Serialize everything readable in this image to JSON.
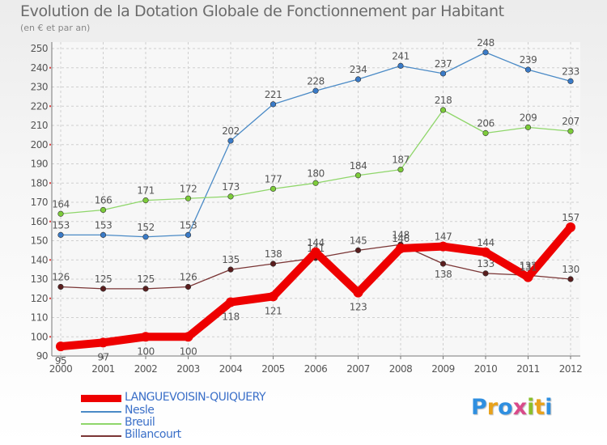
{
  "title": "Evolution de la Dotation Globale de Fonctionnement par Habitant",
  "subtitle": "(en € et par an)",
  "logo": {
    "text": "Proxiti",
    "colors": [
      "#2f8fe0",
      "#e8a21c",
      "#2f8fe0",
      "#d94a8a",
      "#8bbf2c",
      "#e8a21c",
      "#2f8fe0"
    ]
  },
  "chart_data": {
    "type": "line",
    "title": "Evolution de la Dotation Globale de Fonctionnement par Habitant",
    "subtitle": "(en € et par an)",
    "xlabel": "",
    "ylabel": "",
    "categories": [
      "2000",
      "2001",
      "2002",
      "2003",
      "2004",
      "2005",
      "2006",
      "2007",
      "2008",
      "2009",
      "2010",
      "2011",
      "2012"
    ],
    "y_ticks": [
      90,
      100,
      110,
      120,
      130,
      140,
      150,
      160,
      170,
      180,
      190,
      200,
      210,
      220,
      230,
      240,
      250
    ],
    "ylim": [
      90,
      250
    ],
    "grid": true,
    "legend_position": "bottom-left",
    "series": [
      {
        "name": "Nesle",
        "color": "#4a8ac6",
        "point_color": "#3a7bc8",
        "values": [
          153,
          153,
          152,
          153,
          202,
          221,
          228,
          234,
          241,
          237,
          248,
          239,
          233
        ]
      },
      {
        "name": "Breuil",
        "color": "#8fd66a",
        "point_color": "#7dcc3a",
        "values": [
          164,
          166,
          171,
          172,
          173,
          177,
          180,
          184,
          187,
          218,
          206,
          209,
          207
        ]
      },
      {
        "name": "Billancourt",
        "color": "#7a3535",
        "point_color": "#5a1e1e",
        "values": [
          126,
          125,
          125,
          126,
          135,
          138,
          141,
          145,
          148,
          138,
          133,
          132,
          130
        ]
      },
      {
        "name": "LANGUEVOISIN-QUIQUERY",
        "color": "#ee0000",
        "point_color": "#ee0000",
        "values": [
          95,
          97,
          100,
          100,
          118,
          121,
          144,
          123,
          146,
          147,
          144,
          131,
          157
        ]
      }
    ],
    "legend": [
      "LANGUEVOISIN-QUIQUERY",
      "Nesle",
      "Breuil",
      "Billancourt"
    ]
  }
}
